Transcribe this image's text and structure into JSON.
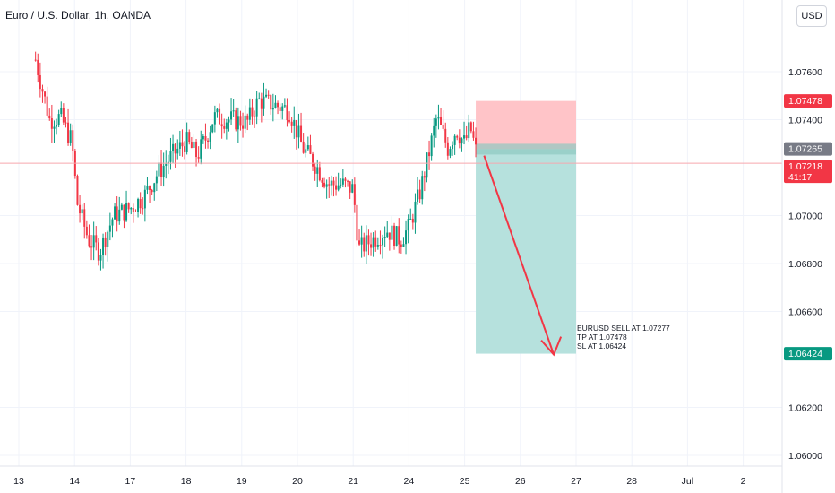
{
  "header": {
    "title": "Euro / U.S. Dollar, 1h, OANDA",
    "currency": "USD"
  },
  "chart_data": {
    "type": "candlestick",
    "symbol": "EURUSD",
    "interval": "1h",
    "source": "OANDA",
    "ylim": [
      1.0595,
      1.0785
    ],
    "y_ticks": [
      "1.07600",
      "1.07400",
      "1.07000",
      "1.06800",
      "1.06600",
      "1.06200",
      "1.06000"
    ],
    "x_ticks": [
      {
        "label": "13",
        "pos": 0
      },
      {
        "label": "14",
        "pos": 1
      },
      {
        "label": "17",
        "pos": 2
      },
      {
        "label": "18",
        "pos": 3
      },
      {
        "label": "19",
        "pos": 4
      },
      {
        "label": "20",
        "pos": 5
      },
      {
        "label": "21",
        "pos": 6
      },
      {
        "label": "24",
        "pos": 7
      },
      {
        "label": "25",
        "pos": 8
      },
      {
        "label": "26",
        "pos": 9
      },
      {
        "label": "27",
        "pos": 10
      },
      {
        "label": "28",
        "pos": 11
      },
      {
        "label": "Jul",
        "pos": 12
      },
      {
        "label": "2",
        "pos": 13
      }
    ],
    "path": [
      [
        0.0,
        1.0795
      ],
      [
        0.25,
        1.077
      ],
      [
        0.55,
        1.074
      ],
      [
        0.75,
        1.0741
      ],
      [
        0.95,
        1.0731
      ],
      [
        1.05,
        1.0705
      ],
      [
        1.25,
        1.069
      ],
      [
        1.45,
        1.0685
      ],
      [
        1.7,
        1.07
      ],
      [
        2.0,
        1.0703
      ],
      [
        2.25,
        1.0708
      ],
      [
        2.5,
        1.0718
      ],
      [
        2.75,
        1.0725
      ],
      [
        3.0,
        1.0731
      ],
      [
        3.2,
        1.0725
      ],
      [
        3.35,
        1.0732
      ],
      [
        3.5,
        1.0741
      ],
      [
        3.8,
        1.074
      ],
      [
        4.1,
        1.0739
      ],
      [
        4.3,
        1.0748
      ],
      [
        4.6,
        1.0746
      ],
      [
        4.85,
        1.0744
      ],
      [
        5.1,
        1.0728
      ],
      [
        5.3,
        1.0722
      ],
      [
        5.55,
        1.0713
      ],
      [
        5.8,
        1.0713
      ],
      [
        6.0,
        1.0711
      ],
      [
        6.1,
        1.0686
      ],
      [
        6.35,
        1.069
      ],
      [
        6.6,
        1.0694
      ],
      [
        6.85,
        1.069
      ],
      [
        7.0,
        1.0695
      ],
      [
        7.2,
        1.071
      ],
      [
        7.35,
        1.0725
      ],
      [
        7.5,
        1.0741
      ],
      [
        7.7,
        1.0728
      ],
      [
        7.85,
        1.0736
      ],
      [
        8.0,
        1.073
      ],
      [
        8.1,
        1.0737
      ],
      [
        8.22,
        1.0725
      ]
    ],
    "sell_entry": 1.07277,
    "take_profit": 1.07478,
    "stop_loss": 1.06424,
    "position_start": 8.2,
    "position_end": 10.0,
    "arrow": {
      "from": [
        8.35,
        1.0725
      ],
      "to": [
        9.6,
        1.0642
      ]
    },
    "annotations": [
      "EURUSD SELL AT 1.07277",
      "TP AT 1.07478",
      "SL AT 1.06424"
    ],
    "price_labels": [
      {
        "value": "1.07478",
        "price": 1.07478,
        "color": "#f23645"
      },
      {
        "value": "1.07265",
        "price": 1.07265,
        "color": "#787b86"
      },
      {
        "value": "1.07218",
        "sub": "41:17",
        "price": 1.07218,
        "color": "#f23645"
      },
      {
        "value": "1.06424",
        "price": 1.06424,
        "color": "#089981"
      }
    ],
    "colors": {
      "up": "#089981",
      "down": "#f23645",
      "profit": "#b2dfdb",
      "loss": "#ffc1c5"
    },
    "grid": true
  }
}
